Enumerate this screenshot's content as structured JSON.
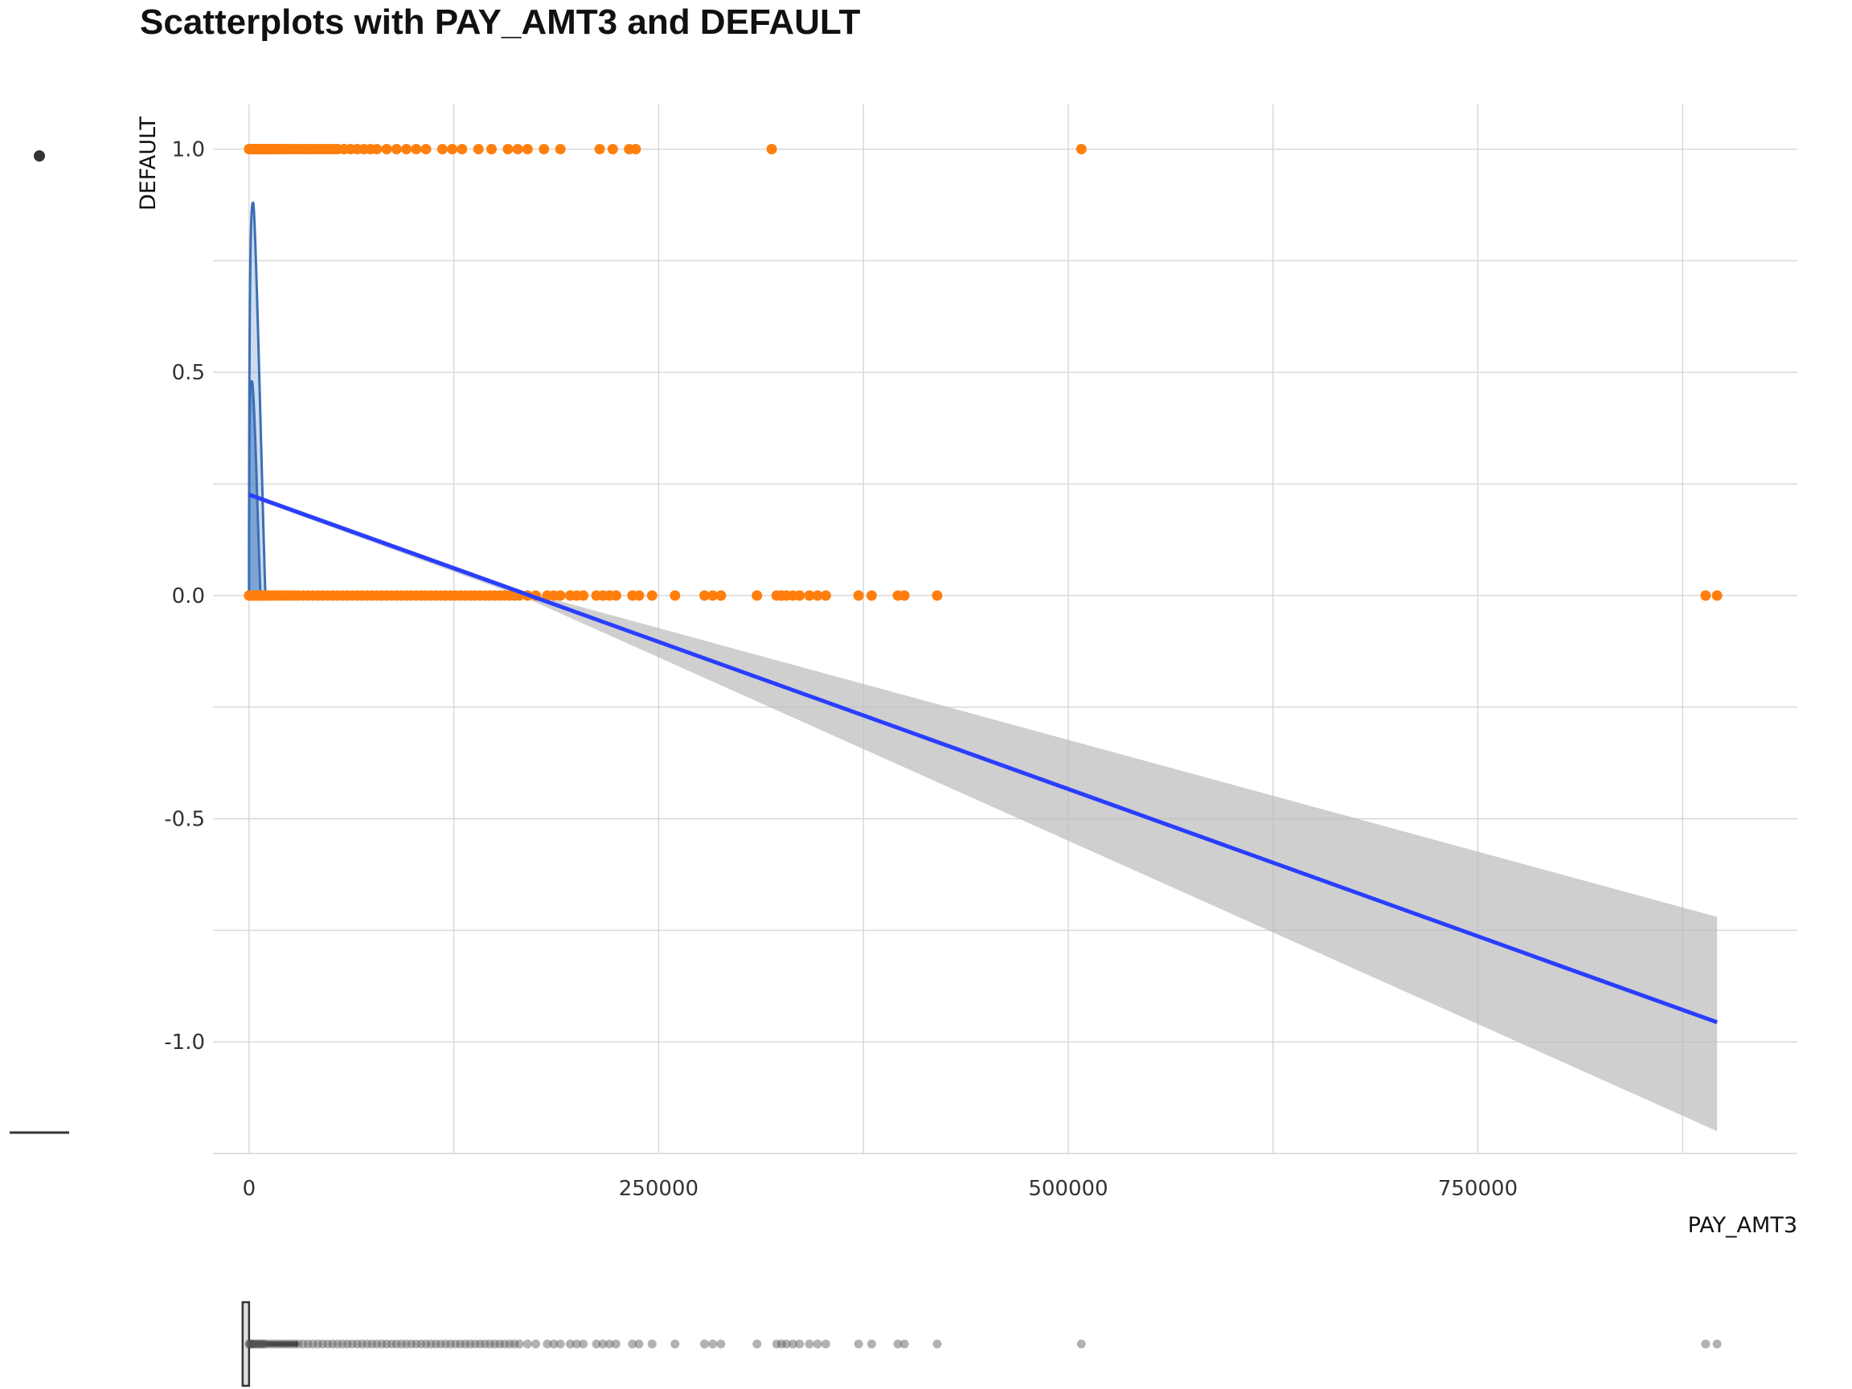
{
  "chart_data": {
    "type": "scatter",
    "title": "Scatterplots with PAY_AMT3 and DEFAULT",
    "xlabel": "PAY_AMT3",
    "ylabel": "DEFAULT",
    "xlim": [
      -22000,
      945000
    ],
    "ylim": [
      -1.25,
      1.1
    ],
    "x_ticks": [
      0,
      250000,
      500000,
      750000
    ],
    "x_tick_labels": [
      "0",
      "250000",
      "500000",
      "750000"
    ],
    "y_ticks": [
      -1.0,
      -0.5,
      0.0,
      0.5,
      1.0
    ],
    "y_tick_labels": [
      "-1.0",
      "-0.5",
      "0.0",
      "0.5",
      "1.0"
    ],
    "grid": true,
    "colors": {
      "points": "#ff7f0e",
      "regression_line": "#2a3eff",
      "confidence_band": "#bdbdbd",
      "density_outline": "#3b6fb6",
      "density_fill": "#5b8cc7",
      "boxplot_points": "#555555"
    },
    "points_default_1": [
      0,
      500,
      1000,
      1500,
      2000,
      2500,
      3000,
      3500,
      4000,
      5000,
      6000,
      7000,
      8000,
      9000,
      10000,
      11000,
      12000,
      13000,
      14000,
      15000,
      16000,
      17000,
      18000,
      19000,
      20000,
      22000,
      24000,
      26000,
      28000,
      30000,
      32000,
      34000,
      36000,
      38000,
      40000,
      42000,
      44000,
      46000,
      48000,
      50000,
      52000,
      54000,
      58000,
      62000,
      66000,
      70000,
      74000,
      78000,
      84000,
      90000,
      96000,
      102000,
      108000,
      118000,
      124000,
      130000,
      140000,
      148000,
      158000,
      164000,
      170000,
      180000,
      190000,
      214000,
      222000,
      232000,
      236000,
      319000,
      508000
    ],
    "points_default_0": [
      0,
      500,
      1000,
      1500,
      2000,
      3000,
      4000,
      5000,
      6000,
      7000,
      8000,
      9000,
      10000,
      12000,
      14000,
      16000,
      18000,
      20000,
      22000,
      24000,
      26000,
      28000,
      30000,
      33000,
      36000,
      39000,
      42000,
      45000,
      48000,
      51000,
      54000,
      57000,
      60000,
      63000,
      66000,
      69000,
      72000,
      75000,
      78000,
      81000,
      84000,
      87000,
      90000,
      93000,
      96000,
      99000,
      102000,
      105000,
      108000,
      111000,
      114000,
      117000,
      120000,
      123000,
      126000,
      129000,
      132000,
      135000,
      138000,
      141000,
      144000,
      147000,
      150000,
      153000,
      156000,
      159000,
      162000,
      165000,
      170000,
      175000,
      182000,
      186000,
      190000,
      196000,
      200000,
      204000,
      212000,
      216000,
      220000,
      224000,
      234000,
      238000,
      246000,
      260000,
      278000,
      283000,
      288000,
      310000,
      322000,
      325000,
      328000,
      332000,
      336000,
      342000,
      347000,
      352000,
      372000,
      380000,
      396000,
      400000,
      420000,
      889000,
      896000
    ],
    "regression": {
      "x": [
        0,
        896000
      ],
      "y": [
        0.226,
        -0.956
      ],
      "ci_lower_end": -1.2,
      "ci_upper_end": -0.72
    },
    "density_curves": [
      {
        "peak_y": 0.88,
        "x_start": 0,
        "x_end": 10000
      },
      {
        "peak_y": 0.48,
        "x_start": 0,
        "x_end": 7000
      }
    ],
    "boxplot_points": [
      0,
      500,
      1000,
      1500,
      2000,
      3000,
      4000,
      5000,
      6000,
      7000,
      8000,
      9000,
      10000,
      12000,
      14000,
      16000,
      18000,
      20000,
      22000,
      24000,
      26000,
      28000,
      30000,
      33000,
      36000,
      39000,
      42000,
      45000,
      48000,
      51000,
      54000,
      57000,
      60000,
      63000,
      66000,
      69000,
      72000,
      75000,
      78000,
      81000,
      84000,
      87000,
      90000,
      93000,
      96000,
      99000,
      102000,
      105000,
      108000,
      111000,
      114000,
      117000,
      120000,
      123000,
      126000,
      129000,
      132000,
      135000,
      138000,
      141000,
      144000,
      147000,
      150000,
      153000,
      156000,
      159000,
      162000,
      165000,
      170000,
      175000,
      182000,
      186000,
      190000,
      196000,
      200000,
      204000,
      212000,
      216000,
      220000,
      224000,
      234000,
      238000,
      246000,
      260000,
      278000,
      283000,
      288000,
      310000,
      322000,
      325000,
      328000,
      332000,
      336000,
      342000,
      347000,
      352000,
      372000,
      380000,
      396000,
      400000,
      420000,
      508000,
      889000,
      896000
    ]
  }
}
